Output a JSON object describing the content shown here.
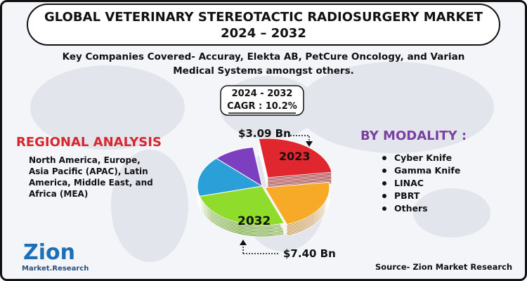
{
  "header": {
    "title_lines": [
      "GLOBAL VETERINARY STEREOTACTIC RADIOSURGERY MARKET",
      "2024 – 2032"
    ]
  },
  "subtitle": "Key Companies Covered- Accuray, Elekta AB, PetCure Oncology, and Varian Medical Systems amongst others.",
  "cagr": {
    "period": "2024 - 2032",
    "label": "CAGR : 10.2%"
  },
  "pie": {
    "start_value": "$3.09 Bn",
    "start_year": "2023",
    "end_year": "2032",
    "end_value": "$7.40 Bn"
  },
  "regional": {
    "heading": "REGIONAL ANALYSIS",
    "text": "North America, Europe, Asia Pacific (APAC), Latin America, Middle East, and Africa (MEA)"
  },
  "modality": {
    "heading": "BY MODALITY :",
    "items": [
      "Cyber Knife",
      "Gamma Knife",
      "LINAC",
      "PBRT",
      "Others"
    ]
  },
  "source": "Source- Zion Market Research",
  "logo": {
    "name": "Zion",
    "tagline": "Market.Research"
  }
}
